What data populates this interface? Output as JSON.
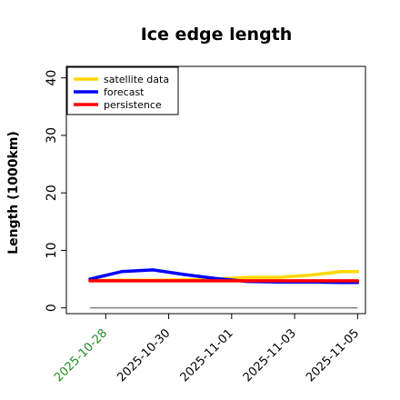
{
  "chart_data": {
    "type": "line",
    "title": "Ice edge length",
    "ylabel": "Length (1000km)",
    "xlabel": "",
    "ylim": [
      -1,
      42
    ],
    "yticks": [
      0,
      10,
      20,
      30,
      40
    ],
    "xlim": [
      "2025-10-26T18:00",
      "2025-11-05T06:00"
    ],
    "x_tick_labels": [
      {
        "label": "2025-10-28",
        "date": "2025-10-28",
        "color": "#228B22"
      },
      {
        "label": "2025-10-30",
        "date": "2025-10-30",
        "color": "#000000"
      },
      {
        "label": "2025-11-01",
        "date": "2025-11-01",
        "color": "#000000"
      },
      {
        "label": "2025-11-03",
        "date": "2025-11-03",
        "color": "#000000"
      },
      {
        "label": "2025-11-05",
        "date": "2025-11-05",
        "color": "#000000"
      }
    ],
    "legend_position": "top-left",
    "grid": false,
    "series": [
      {
        "name": "satellite data",
        "color": "#FFD700",
        "x": [
          "2025-10-27T12:00",
          "2025-10-28T12:00",
          "2025-10-29T12:00",
          "2025-10-30T12:00",
          "2025-10-31T12:00",
          "2025-11-01T12:00",
          "2025-11-02T12:00",
          "2025-11-03T12:00",
          "2025-11-04T12:00",
          "2025-11-05T00:00"
        ],
        "values": [
          4.8,
          4.8,
          4.8,
          4.9,
          5.0,
          5.3,
          5.3,
          5.7,
          6.3,
          6.3
        ]
      },
      {
        "name": "forecast",
        "color": "#0000FF",
        "x": [
          "2025-10-27T12:00",
          "2025-10-28T12:00",
          "2025-10-29T12:00",
          "2025-10-30T12:00",
          "2025-10-31T12:00",
          "2025-11-01T12:00",
          "2025-11-02T12:00",
          "2025-11-03T12:00",
          "2025-11-04T12:00",
          "2025-11-05T00:00"
        ],
        "values": [
          5.0,
          6.3,
          6.6,
          5.8,
          5.1,
          4.6,
          4.5,
          4.5,
          4.4,
          4.4
        ]
      },
      {
        "name": "persistence",
        "color": "#FF0000",
        "x": [
          "2025-10-27T12:00",
          "2025-10-28T12:00",
          "2025-10-29T12:00",
          "2025-10-30T12:00",
          "2025-10-31T12:00",
          "2025-11-01T12:00",
          "2025-11-02T12:00",
          "2025-11-03T12:00",
          "2025-11-04T12:00",
          "2025-11-05T00:00"
        ],
        "values": [
          4.7,
          4.7,
          4.7,
          4.7,
          4.7,
          4.7,
          4.7,
          4.7,
          4.7,
          4.7
        ]
      }
    ],
    "reference_line": {
      "y": 0,
      "color": "#808080",
      "x_start": "2025-10-27T12:00",
      "x_end": "2025-11-05T00:00"
    }
  }
}
